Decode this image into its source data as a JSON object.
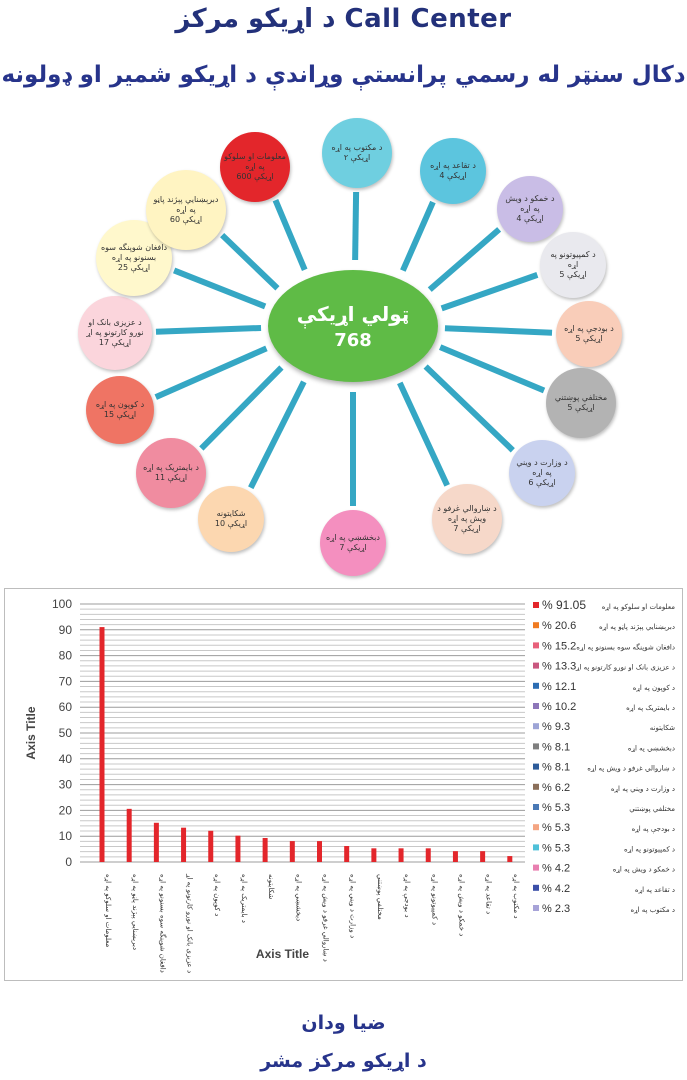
{
  "header": {
    "title": "د اړيکو مرکز  Call Center",
    "subtitle": "دکال سنټر له رسمي پرانستې وړاندې  د اړیکو شمیر او ډولونه"
  },
  "hub": {
    "center_label": "ټولي اړيکې",
    "center_value": "768",
    "center_color": "#5fbb46",
    "spoke_color": "#35a7c4",
    "nodes": [
      {
        "label": "د مکتوب په اړه",
        "value": "۲ اړیکې",
        "color": "#6fcfe0"
      },
      {
        "label": "د تقاعد په اړه",
        "value": "4 اړیکې",
        "color": "#5cc5de"
      },
      {
        "label": "د خمکو د ویش په اړه",
        "value": "4 اړیکې",
        "color": "#c9bde6"
      },
      {
        "label": "د کمپیوتونو په اړه",
        "value": "5 اړیکې",
        "color": "#e9e9ee"
      },
      {
        "label": "د بودجې په اړه",
        "value": "5 اړیکې",
        "color": "#f9cdb9"
      },
      {
        "label": "مختلفي پوښتني",
        "value": "5 اړیکې",
        "color": "#b3b3b3"
      },
      {
        "label": "د وزارت د ویني په اړه",
        "value": "6 اړیکې",
        "color": "#c9d2ef"
      },
      {
        "label": "د ښاروالي غرفو د ویش په اړه",
        "value": "7 اړیکې",
        "color": "#f6d8c9"
      },
      {
        "label": "دبخشښي په اړه",
        "value": "7 اړیکې",
        "color": "#f48fbf"
      },
      {
        "label": "شکایتونه",
        "value": "10 اړیکې",
        "color": "#fcd7b0"
      },
      {
        "label": "د بایمتریک په اړه",
        "value": "11 اړیکې",
        "color": "#f08ca0"
      },
      {
        "label": "د کوپون په اړه",
        "value": "15 اړیکې",
        "color": "#ef7464"
      },
      {
        "label": "د عزیزی بانک او نورو کارتونو په اړ",
        "value": "17 اړیکې",
        "color": "#fbd5dc"
      },
      {
        "label": "دافغان شوپنگه سوه بسنونو په اړه",
        "value": "25 اړیکې",
        "color": "#fff8cc"
      },
      {
        "label": "دبرېښنايي پېژند پاڼو په اړه",
        "value": "60 اړیکې",
        "color": "#fff4c2"
      },
      {
        "label": "معلومات او سلوکو په اړه",
        "value": "600 اړیکې",
        "color": "#e3262b"
      }
    ]
  },
  "chart_data": {
    "type": "bar",
    "xlabel": "Axis Title",
    "ylabel": "Axis Title",
    "ylim": [
      0,
      100
    ],
    "yticks": [
      0,
      10,
      20,
      30,
      40,
      50,
      60,
      70,
      80,
      90,
      100
    ],
    "grid": true,
    "bar_color": "#e3262b",
    "legend_position": "right",
    "categories": [
      "معلومات او سلوکو په اړه",
      "دبرېښنايي پېژند پاڼو په اړه",
      "دافغان شوپنگه سوه بسنونو په اړه",
      "د عزیزی بانک او نورو کارتونو په اړ",
      "د کوپون په اړه",
      "د بایمتریک په اړه",
      "شکایتونه",
      "دبخشښي په اړه",
      "د ښاروالي غرفو د ویش په اړه",
      "د وزارت د ویني په اړه",
      "مختلفي پوښتني",
      "د بودجې په اړه",
      "د کمپیوتونو په اړه",
      "د خمکو د ویش په اړه",
      "د تقاعد په اړه",
      "د مکتوب په اړه"
    ],
    "values": [
      91.05,
      20.6,
      15.2,
      13.3,
      12.1,
      10.2,
      9.3,
      8.1,
      8.1,
      6.2,
      5.3,
      5.3,
      5.3,
      4.2,
      4.2,
      2.3
    ],
    "legend": [
      {
        "pct": "% 91.05",
        "label": "معلومات او سلوکو په اړه",
        "color": "#e3262b"
      },
      {
        "pct": "% 20.6",
        "label": "دبرېښنايي پېژند پاڼو په اړه",
        "color": "#f07b22"
      },
      {
        "pct": "% 15.2",
        "label": "دافغان شوپنگه سوه بسنونو په اړه",
        "color": "#e8607a"
      },
      {
        "pct": "% 13.3",
        "label": "د عزیزی بانک او نورو کارتونو په اړ",
        "color": "#c9577f"
      },
      {
        "pct": "% 12.1",
        "label": "د کوپون په اړه",
        "color": "#2c6db3"
      },
      {
        "pct": "% 10.2",
        "label": "د بایمتریک په اړه",
        "color": "#8d76b9"
      },
      {
        "pct": "% 9.3",
        "label": "شکایتونه",
        "color": "#9da4d6"
      },
      {
        "pct": "% 8.1",
        "label": "دبخشښي په اړه",
        "color": "#7f7f7f"
      },
      {
        "pct": "% 8.1",
        "label": "د ښاروالي غرفو د ویش په اړه",
        "color": "#2d5c9a"
      },
      {
        "pct": "% 6.2",
        "label": "د وزارت د ویني په اړه",
        "color": "#8b6f5a"
      },
      {
        "pct": "% 5.3",
        "label": "مختلفي پوښتني",
        "color": "#4a79b5"
      },
      {
        "pct": "% 5.3",
        "label": "د بودجې په اړه",
        "color": "#f4a582"
      },
      {
        "pct": "% 5.3",
        "label": "د کمپیوتونو په اړه",
        "color": "#4fc1d9"
      },
      {
        "pct": "% 4.2",
        "label": "د خمکو د ویش په اړه",
        "color": "#e87fb0"
      },
      {
        "pct": "% 4.2",
        "label": "د تقاعد په اړه",
        "color": "#3c4fa8"
      },
      {
        "pct": "% 2.3",
        "label": "د مکتوب په اړه",
        "color": "#a7a3d8"
      }
    ]
  },
  "footer": {
    "line1": "ضیا ودان",
    "line2": "د اړیکو مرکز مشر"
  }
}
